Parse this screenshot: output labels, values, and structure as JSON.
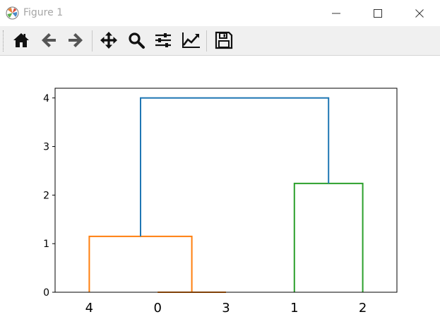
{
  "window": {
    "title": "Figure 1",
    "icon": "matplotlib-logo-icon",
    "controls": [
      "minimize-icon",
      "maximize-icon",
      "close-icon"
    ]
  },
  "toolbar": {
    "buttons": [
      {
        "name": "home",
        "icon": "home-icon"
      },
      {
        "name": "back",
        "icon": "arrow-left-icon"
      },
      {
        "name": "forward",
        "icon": "arrow-right-icon"
      },
      {
        "name": "pan",
        "icon": "move-icon"
      },
      {
        "name": "zoom",
        "icon": "magnifier-icon"
      },
      {
        "name": "configure-subplots",
        "icon": "sliders-icon"
      },
      {
        "name": "edit-axis",
        "icon": "line-chart-icon"
      },
      {
        "name": "save",
        "icon": "floppy-disk-icon"
      }
    ]
  },
  "chart_data": {
    "type": "dendrogram",
    "title": "",
    "xlabel": "",
    "ylabel": "",
    "leaf_labels": [
      "4",
      "0",
      "3",
      "1",
      "2"
    ],
    "ylim": [
      0,
      4.2
    ],
    "yticks": [
      "0",
      "1",
      "2",
      "3",
      "4"
    ],
    "links": [
      {
        "left": "0",
        "right": "3",
        "height": 0.0,
        "color": "#ff7f0e"
      },
      {
        "left": "4",
        "right": "(0,3)",
        "height": 1.15,
        "color": "#ff7f0e"
      },
      {
        "left": "1",
        "right": "2",
        "height": 2.24,
        "color": "#2ca02c"
      },
      {
        "left": "(4,0,3)",
        "right": "(1,2)",
        "height": 4.0,
        "color": "#1f77b4"
      }
    ],
    "grid": false,
    "legend": "none"
  }
}
